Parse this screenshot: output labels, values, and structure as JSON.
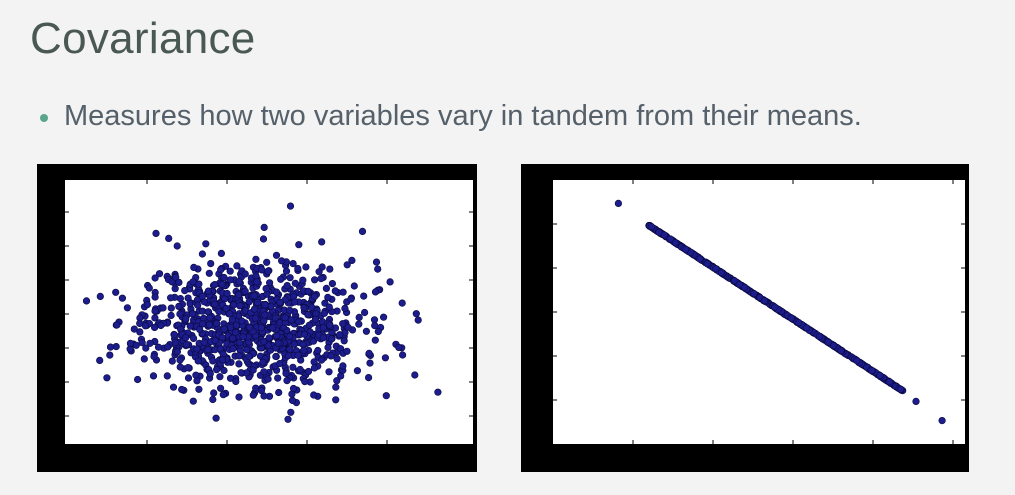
{
  "slide": {
    "title": "Covariance",
    "bullets": [
      "Measures how two variables vary in tandem from their means."
    ]
  },
  "colors": {
    "background": "#f2f3f2",
    "title": "#4a5853",
    "bullet_text": "#55606a",
    "bullet_dot": "#5aa58b",
    "plot_frame": "#000000",
    "point_fill": "#1c1c8c",
    "point_edge": "#0a0a40"
  },
  "chart_data": [
    {
      "type": "scatter",
      "title": "",
      "xlabel": "",
      "ylabel": "",
      "tick_labels_shown": false,
      "description_values": "roughly circular cloud of about 1000 points centred near the middle; no visible relationship between x and y",
      "points": [
        [
          -2.82,
          0.72
        ],
        [
          -1.37,
          2.52
        ],
        [
          2.05,
          2.72
        ],
        [
          -0.4,
          1.16
        ],
        [
          0.41,
          1.24
        ],
        [
          -1.07,
          -0.34
        ],
        [
          3.38,
          -1.91
        ],
        [
          -2.41,
          -0.84
        ],
        [
          2.47,
          -2.01
        ],
        [
          1.78,
          1.76
        ],
        [
          2.64,
          -0.53
        ],
        [
          0.78,
          3.45
        ],
        [
          -0.13,
          -2.05
        ],
        [
          -1.14,
          -1.83
        ],
        [
          2.69,
          -0.62
        ],
        [
          3.0,
          0.35
        ],
        [
          -1.02,
          -1.5
        ],
        [
          1.96,
          -1.29
        ],
        [
          -1.61,
          0.83
        ],
        [
          -1.7,
          -0.5
        ],
        [
          -0.87,
          -1.58
        ],
        [
          -1.51,
          0.01
        ],
        [
          2.28,
          0.98
        ],
        [
          -0.55,
          -0.42
        ],
        [
          -0.65,
          0.03
        ],
        [
          -1.61,
          0.43
        ],
        [
          -0.42,
          -0.98
        ],
        [
          1.22,
          0.19
        ],
        [
          -0.43,
          1.2
        ],
        [
          -0.02,
          1.0
        ]
      ],
      "cloud": {
        "n": 950,
        "center": [
          0.1,
          0.05
        ],
        "sd": [
          0.95,
          0.9
        ],
        "seed": 11
      }
    },
    {
      "type": "scatter",
      "title": "",
      "xlabel": "",
      "ylabel": "",
      "tick_labels_shown": false,
      "description_values": "points lie on a straight line with negative slope (perfect negative covariance)",
      "line": {
        "x_start": -1.55,
        "x_end": 2.35,
        "slope": -1.0
      },
      "points": [
        [
          -2.0,
          2.05
        ],
        [
          2.55,
          -2.6
        ],
        [
          2.95,
          -3.05
        ]
      ],
      "count": 520
    }
  ]
}
